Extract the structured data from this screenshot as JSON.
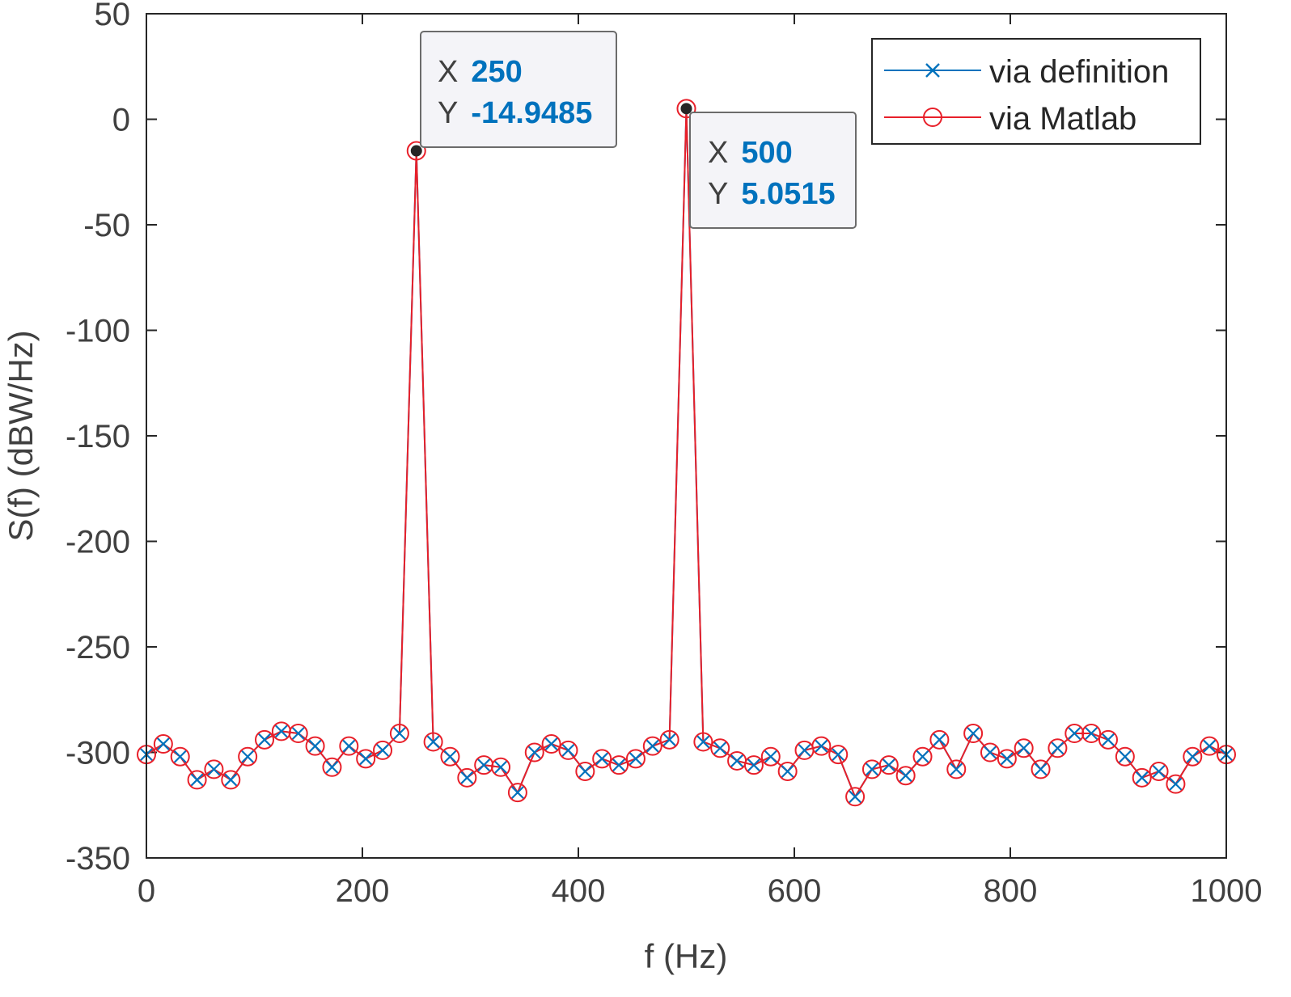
{
  "chart_data": {
    "type": "line",
    "title": "",
    "xlabel": "f (Hz)",
    "ylabel": "S(f)  (dBW/Hz)",
    "xlim": [
      0,
      1000
    ],
    "ylim": [
      -350,
      50
    ],
    "xticks": [
      0,
      200,
      400,
      600,
      800,
      1000
    ],
    "yticks": [
      50,
      0,
      -50,
      -100,
      -150,
      -200,
      -250,
      -300,
      -350
    ],
    "x_tick_labels": [
      "0",
      "200",
      "400",
      "600",
      "800",
      "1000"
    ],
    "y_tick_labels": [
      "50",
      "0",
      "-50",
      "-100",
      "-150",
      "-200",
      "-250",
      "-300",
      "-350"
    ],
    "grid": false,
    "legend_position": "top-right",
    "x": [
      0,
      15.625,
      31.25,
      46.875,
      62.5,
      78.125,
      93.75,
      109.375,
      125,
      140.625,
      156.25,
      171.875,
      187.5,
      203.125,
      218.75,
      234.375,
      250,
      265.625,
      281.25,
      296.875,
      312.5,
      328.125,
      343.75,
      359.375,
      375,
      390.625,
      406.25,
      421.875,
      437.5,
      453.125,
      468.75,
      484.375,
      500,
      515.625,
      531.25,
      546.875,
      562.5,
      578.125,
      593.75,
      609.375,
      625,
      640.625,
      656.25,
      671.875,
      687.5,
      703.125,
      718.75,
      734.375,
      750,
      765.625,
      781.25,
      796.875,
      812.5,
      828.125,
      843.75,
      859.375,
      875,
      890.625,
      906.25,
      921.875,
      937.5,
      953.125,
      968.75,
      984.375,
      1000
    ],
    "series": [
      {
        "name": "via definition",
        "color": "#0072bd",
        "marker": "x",
        "values": [
          -301,
          -296,
          -302,
          -313,
          -308,
          -313,
          -302,
          -294,
          -290,
          -291,
          -297,
          -307,
          -297,
          -303,
          -299,
          -291,
          -14.9485,
          -295,
          -302,
          -312,
          -306,
          -307,
          -319,
          -300,
          -296,
          -299,
          -309,
          -303,
          -306,
          -303,
          -297,
          -294,
          5.0515,
          -295,
          -298,
          -304,
          -306,
          -302,
          -309,
          -299,
          -297,
          -301,
          -321,
          -308,
          -306,
          -311,
          -302,
          -294,
          -308,
          -291,
          -300,
          -303,
          -298,
          -308,
          -298,
          -291,
          -291,
          -294,
          -302,
          -312,
          -309,
          -315,
          -302,
          -297,
          -301
        ]
      },
      {
        "name": "via Matlab",
        "color": "#e8202a",
        "marker": "o",
        "values": [
          -301,
          -296,
          -302,
          -313,
          -308,
          -313,
          -302,
          -294,
          -290,
          -291,
          -297,
          -307,
          -297,
          -303,
          -299,
          -291,
          -14.9485,
          -295,
          -302,
          -312,
          -306,
          -307,
          -319,
          -300,
          -296,
          -299,
          -309,
          -303,
          -306,
          -303,
          -297,
          -294,
          5.0515,
          -295,
          -298,
          -304,
          -306,
          -302,
          -309,
          -299,
          -297,
          -301,
          -321,
          -308,
          -306,
          -311,
          -302,
          -294,
          -308,
          -291,
          -300,
          -303,
          -298,
          -308,
          -298,
          -291,
          -291,
          -294,
          -302,
          -312,
          -309,
          -315,
          -302,
          -297,
          -301
        ]
      }
    ],
    "datatips": [
      {
        "x_key": "X",
        "x_value": "250",
        "y_key": "Y",
        "y_value": "-14.9485",
        "x": 250,
        "y": -14.9485
      },
      {
        "x_key": "X",
        "x_value": "500",
        "y_key": "Y",
        "y_value": "5.0515",
        "x": 500,
        "y": 5.0515
      }
    ]
  }
}
